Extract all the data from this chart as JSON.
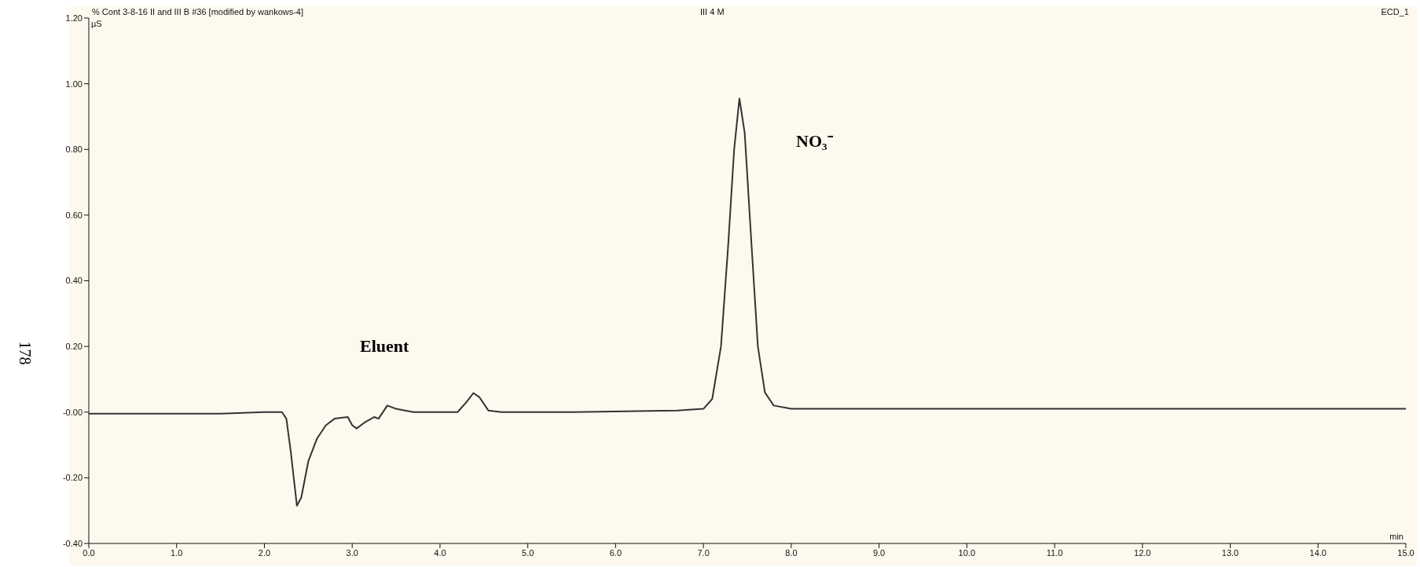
{
  "chart_data": {
    "type": "line",
    "title": "% Cont 3-8-16 II and III B #36 [modified by wankows-4]",
    "subtitle": "III 4 M",
    "xlabel": "min",
    "ylabel": "µS",
    "annotations": [
      "ECD_1",
      "178",
      "Eluent",
      "NO₃⁻"
    ],
    "x": [
      0,
      1.5,
      2.0,
      2.2,
      2.25,
      2.3,
      2.37,
      2.42,
      2.5,
      2.6,
      2.7,
      2.8,
      2.95,
      3.0,
      3.05,
      3.15,
      3.25,
      3.3,
      3.4,
      3.5,
      3.6,
      3.7,
      4.2,
      4.3,
      4.38,
      4.45,
      4.55,
      4.7,
      5.5,
      6.7,
      7.0,
      7.1,
      7.2,
      7.28,
      7.35,
      7.41,
      7.47,
      7.55,
      7.62,
      7.7,
      7.8,
      8.0,
      15.0
    ],
    "series": [
      {
        "color": "#333333",
        "values": [
          -0.005,
          -0.005,
          0.0,
          0.0,
          -0.02,
          -0.12,
          -0.285,
          -0.26,
          -0.15,
          -0.08,
          -0.04,
          -0.02,
          -0.015,
          -0.04,
          -0.05,
          -0.03,
          -0.015,
          -0.02,
          0.02,
          0.01,
          0.005,
          0.0,
          0.0,
          0.03,
          0.058,
          0.045,
          0.005,
          0.0,
          0.0,
          0.005,
          0.01,
          0.04,
          0.2,
          0.5,
          0.8,
          0.955,
          0.85,
          0.5,
          0.2,
          0.06,
          0.02,
          0.01,
          0.01
        ]
      }
    ],
    "xlim": [
      0,
      15
    ],
    "xticks": [
      {
        "value": 0,
        "label": "0.0"
      },
      {
        "value": 1,
        "label": "1.0"
      },
      {
        "value": 2,
        "label": "2.0"
      },
      {
        "value": 3,
        "label": "3.0"
      },
      {
        "value": 4,
        "label": "4.0"
      },
      {
        "value": 5,
        "label": "5.0"
      },
      {
        "value": 6,
        "label": "6.0"
      },
      {
        "value": 7,
        "label": "7.0"
      },
      {
        "value": 8,
        "label": "8.0"
      },
      {
        "value": 9,
        "label": "9.0"
      },
      {
        "value": 10,
        "label": "10.0"
      },
      {
        "value": 11,
        "label": "11.0"
      },
      {
        "value": 12,
        "label": "12.0"
      },
      {
        "value": 13,
        "label": "13.0"
      },
      {
        "value": 14,
        "label": "14.0"
      },
      {
        "value": 15,
        "label": "15.0"
      }
    ],
    "ylim": [
      -0.4,
      1.2
    ],
    "yticks": [
      {
        "value": -0.4,
        "label": "-0.40"
      },
      {
        "value": -0.2,
        "label": "-0.20"
      },
      {
        "value": 0,
        "label": "-0.00"
      },
      {
        "value": 0.2,
        "label": "0.20"
      },
      {
        "value": 0.4,
        "label": "0.40"
      },
      {
        "value": 0.6,
        "label": "0.60"
      },
      {
        "value": 0.8,
        "label": "0.80"
      },
      {
        "value": 1.0,
        "label": "1.00"
      },
      {
        "value": 1.2,
        "label": "1.20"
      }
    ],
    "grid": false,
    "legend": false,
    "marker": "none",
    "line_style": "solid"
  }
}
